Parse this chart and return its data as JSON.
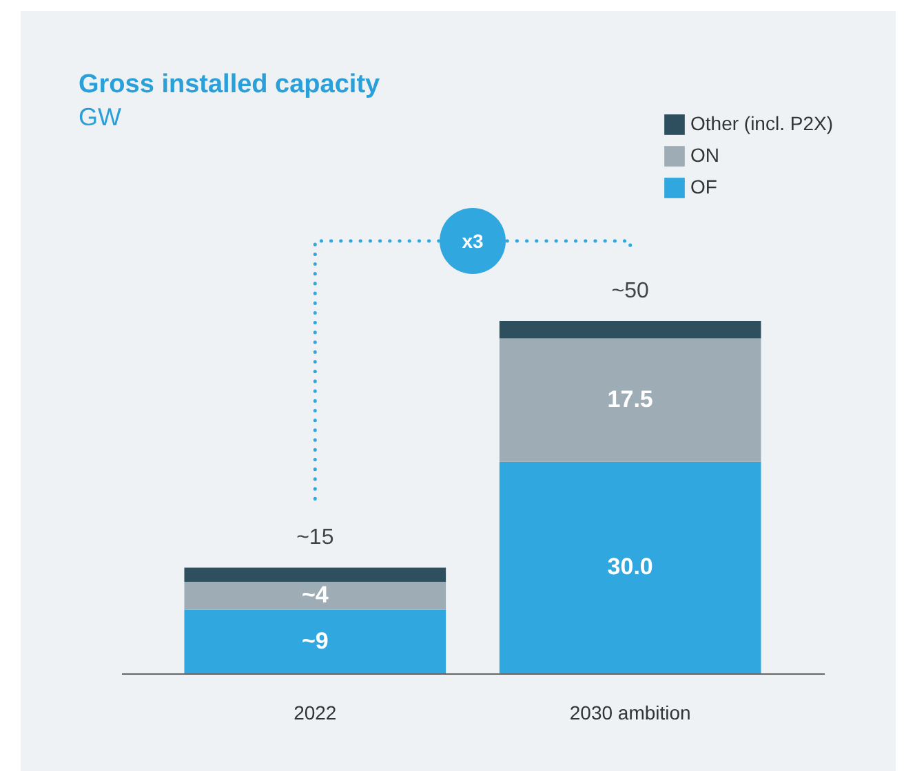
{
  "chart_data": {
    "type": "bar",
    "title": "Gross installed capacity",
    "subtitle": "GW",
    "categories": [
      "2022",
      "2030 ambition"
    ],
    "stacked": true,
    "series": [
      {
        "name": "OF",
        "color": "#30a7de",
        "values": [
          9,
          30.0
        ],
        "value_labels": [
          "~9",
          "30.0"
        ]
      },
      {
        "name": "ON",
        "color": "#9eacb5",
        "values": [
          4,
          17.5
        ],
        "value_labels": [
          "~4",
          "17.5"
        ]
      },
      {
        "name": "Other (incl. P2X)",
        "color": "#2d4f5e",
        "values": [
          2,
          2.5
        ],
        "value_labels": [
          null,
          null
        ]
      }
    ],
    "totals": [
      "~15",
      "~50"
    ],
    "annotations": [
      "x3"
    ],
    "legend": "top right",
    "grid": false
  }
}
